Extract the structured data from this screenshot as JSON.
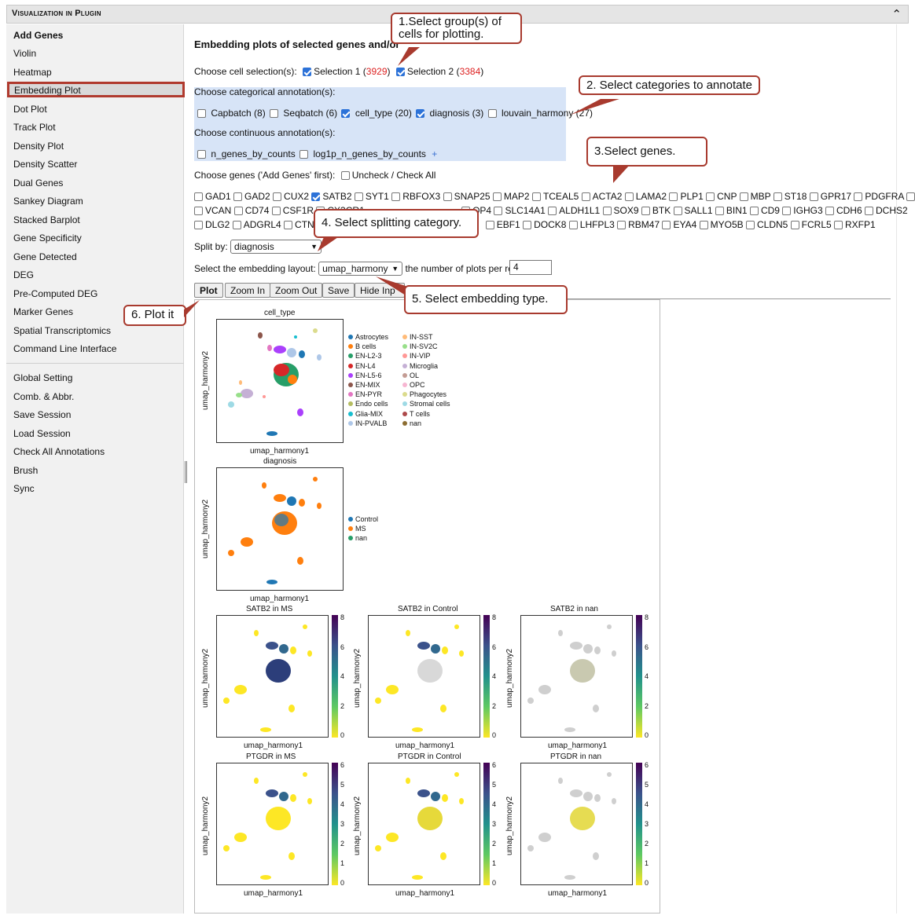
{
  "window": {
    "title": "Visualization in Plugin",
    "collapse_icon": "chevron-up-icon"
  },
  "sidebar": {
    "items": [
      "Add Genes",
      "Violin",
      "Heatmap",
      "Embedding Plot",
      "Dot Plot",
      "Track Plot",
      "Density Plot",
      "Density Scatter",
      "Dual Genes",
      "Sankey Diagram",
      "Stacked Barplot",
      "Gene Specificity",
      "Gene Detected",
      "DEG",
      "Pre-Computed DEG",
      "Marker Genes",
      "Spatial Transcriptomics",
      "Command Line Interface"
    ],
    "items2": [
      "Global Setting",
      "Comb. & Abbr.",
      "Save Session",
      "Load Session",
      "Check All Annotations",
      "Brush",
      "Sync"
    ],
    "active": "Embedding Plot"
  },
  "main": {
    "heading": "Embedding plots of selected genes and/or",
    "cell_selection_label": "Choose cell selection(s):",
    "selections": [
      {
        "label": "Selection 1",
        "count": "3929",
        "checked": true
      },
      {
        "label": "Selection 2",
        "count": "3384",
        "checked": true
      }
    ],
    "categorical_label": "Choose categorical annotation(s):",
    "categorical": [
      {
        "label": "Capbatch (8)",
        "checked": false
      },
      {
        "label": "Seqbatch (6)",
        "checked": false
      },
      {
        "label": "cell_type (20)",
        "checked": true
      },
      {
        "label": "diagnosis (3)",
        "checked": true
      },
      {
        "label": "louvain_harmony (27)",
        "checked": false
      }
    ],
    "continuous_label": "Choose continuous annotation(s):",
    "continuous": [
      {
        "label": "n_genes_by_counts",
        "checked": false
      },
      {
        "label": "log1p_n_genes_by_counts",
        "checked": false
      }
    ],
    "continuous_more": "+",
    "genes_label": "Choose genes ('Add Genes' first):",
    "uncheck_label": "Uncheck / Check All",
    "gene_rows": [
      [
        "GAD1",
        "GAD2",
        "CUX2",
        "SATB2",
        "SYT1",
        "RBFOX3",
        "SNAP25",
        "MAP2",
        "TCEAL5",
        "ACTA2",
        "LAMA2",
        "PLP1",
        "CNP",
        "MBP",
        "ST18",
        "GPR17",
        "PDGFRA",
        ""
      ],
      [
        "VCAN",
        "CD74",
        "CSF1R",
        "CX3CR1",
        "",
        "",
        "",
        "QP4",
        "SLC14A1",
        "ALDH1L1",
        "SOX9",
        "BTK",
        "SALL1",
        "BIN1",
        "CD9",
        "IGHG3",
        "CDH6",
        "DCHS2"
      ],
      [
        "DLG2",
        "ADGRL4",
        "CTNN",
        "",
        "",
        "",
        "",
        "EBF1",
        "DOCK8",
        "LHFPL3",
        "RBM47",
        "EYA4",
        "MYO5B",
        "CLDN5",
        "FCRL5",
        "RXFP1"
      ]
    ],
    "gene_row_text": {
      "r1": "GAD1 GAD2 CUX2 SATB2 SYT1 RBFOX3 SNAP25 MAP2 TCEAL5 ACTA2 LAMA2 PLP1 CNP MBP ST18 GPR17 PDGFRA",
      "r2a": "VCAN CD74 CSF1R CX3CR1",
      "r2b": "QP4 SLC14A1 ALDH1L1 SOX9 BTK SALL1 BIN1 CD9 IGHG3 CDH6 DCHS2",
      "r3a": "DLG2 ADGRL4 CTNN",
      "r3b": "EBF1 DOCK8 LHFPL3 RBM47 EYA4 MYO5B CLDN5 FCRL5 RXFP1"
    },
    "split_label": "Split by:",
    "split_value": "diagnosis",
    "layout_label": "Select the embedding layout:",
    "layout_value": "umap_harmony",
    "per_row_label": "the number of plots per row:",
    "per_row_value": "4",
    "buttons": {
      "plot": "Plot",
      "zoom_in": "Zoom In",
      "zoom_out": "Zoom Out",
      "save": "Save",
      "hide": "Hide Inp"
    }
  },
  "callouts": {
    "c1": "1.Select group(s) of cells for plotting.",
    "c2": "2. Select categories to annotate",
    "c3": "3.Select genes.",
    "c4": "4. Select splitting category.",
    "c5": "5. Select embedding type.",
    "c6": "6. Plot it"
  },
  "plots": {
    "xlabel": "umap_harmony1",
    "ylabel": "umap_harmony2",
    "cell_type": {
      "title": "cell_type",
      "legend_left": [
        "Astrocytes",
        "B cells",
        "EN-L2-3",
        "EN-L4",
        "EN-L5-6",
        "EN-MIX",
        "EN-PYR",
        "Endo cells",
        "Glia-MIX",
        "IN-PVALB"
      ],
      "legend_right": [
        "IN-SST",
        "IN-SV2C",
        "IN-VIP",
        "Microglia",
        "OL",
        "OPC",
        "Phagocytes",
        "Stromal cells",
        "T cells",
        "nan"
      ],
      "colors_left": [
        "#1f77b4",
        "#ff7f0e",
        "#279e68",
        "#d62728",
        "#aa40fc",
        "#8c564b",
        "#e377c2",
        "#b5bd61",
        "#17becf",
        "#aec7e8"
      ],
      "colors_right": [
        "#ffbb78",
        "#98df8a",
        "#ff9896",
        "#c5b0d5",
        "#c49c94",
        "#f7b6d2",
        "#dbdb8d",
        "#9edae5",
        "#ad494a",
        "#8c6d31"
      ]
    },
    "diagnosis": {
      "title": "diagnosis",
      "legend": [
        "Control",
        "MS",
        "nan"
      ],
      "colors": [
        "#1f77b4",
        "#ff7f0e",
        "#279e68"
      ]
    },
    "satb2": {
      "titles": [
        "SATB2 in MS",
        "SATB2 in Control",
        "SATB2 in nan"
      ],
      "ticks": [
        "8",
        "6",
        "4",
        "2",
        "0"
      ]
    },
    "ptgdr": {
      "titles": [
        "PTGDR in MS",
        "PTGDR in Control",
        "PTGDR in nan"
      ],
      "ticks": [
        "6",
        "5",
        "4",
        "3",
        "2",
        "1",
        "0"
      ]
    }
  }
}
